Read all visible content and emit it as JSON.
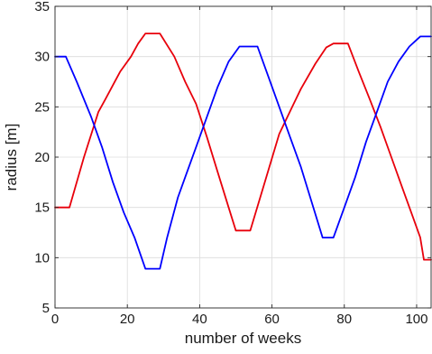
{
  "chart_data": {
    "type": "line",
    "title": "",
    "xlabel": "number of weeks",
    "ylabel": "radius [m]",
    "xlim": [
      0,
      104
    ],
    "ylim": [
      5,
      35
    ],
    "xticks": [
      0,
      20,
      40,
      60,
      80,
      100
    ],
    "yticks": [
      5,
      10,
      15,
      20,
      25,
      30,
      35
    ],
    "grid": true,
    "legend": "none",
    "series": [
      {
        "color": "#e8000b",
        "x": [
          0,
          4,
          8,
          12,
          14,
          18,
          21,
          23,
          25,
          29,
          33,
          36,
          39,
          42,
          45,
          48,
          50,
          54,
          58,
          62,
          66,
          68,
          72,
          75,
          77,
          81,
          84,
          87,
          90,
          93,
          96,
          99,
          101,
          102,
          104
        ],
        "y": [
          15,
          15,
          20,
          24.5,
          25.8,
          28.5,
          30,
          31.3,
          32.3,
          32.3,
          30,
          27.5,
          25.3,
          22,
          18.5,
          15,
          12.7,
          12.7,
          17.5,
          22.3,
          25.3,
          26.8,
          29.3,
          30.9,
          31.3,
          31.3,
          28.5,
          25.8,
          23,
          20,
          17,
          14,
          12,
          9.8,
          9.8
        ]
      },
      {
        "color": "#0000ff",
        "x": [
          0,
          3,
          6,
          10,
          13,
          16,
          19,
          22,
          25,
          29,
          31,
          34,
          36,
          39,
          42,
          45,
          48,
          51,
          54,
          56,
          59,
          62,
          65,
          68,
          71,
          74,
          77,
          80,
          83,
          86,
          89,
          92,
          95,
          98,
          101,
          103,
          104
        ],
        "y": [
          30,
          30,
          27.5,
          24,
          21,
          17.5,
          14.5,
          12,
          8.9,
          8.9,
          12,
          16,
          18,
          21,
          24,
          27,
          29.5,
          31,
          31,
          31,
          28,
          25,
          22,
          19,
          15.5,
          12,
          12,
          15,
          18,
          21.5,
          24.5,
          27.5,
          29.5,
          31,
          32,
          32,
          32
        ]
      }
    ]
  }
}
